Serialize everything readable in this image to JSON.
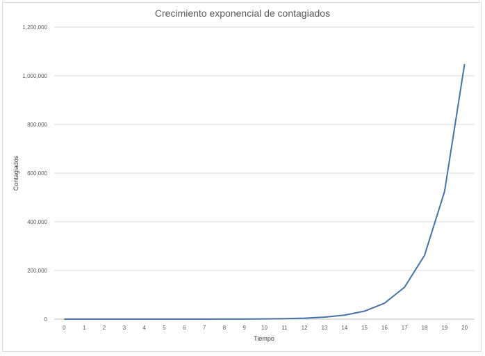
{
  "chart_data": {
    "type": "line",
    "title": "Crecimiento exponencial de contagiados",
    "xlabel": "Tiempo",
    "ylabel": "Contagiados",
    "x": [
      0,
      1,
      2,
      3,
      4,
      5,
      6,
      7,
      8,
      9,
      10,
      11,
      12,
      13,
      14,
      15,
      16,
      17,
      18,
      19,
      20
    ],
    "x_tick_labels": [
      "0",
      "1",
      "2",
      "3",
      "4",
      "5",
      "6",
      "7",
      "8",
      "9",
      "10",
      "11",
      "12",
      "13",
      "14",
      "15",
      "16",
      "17",
      "18",
      "19",
      "20"
    ],
    "series": [
      {
        "values": [
          1,
          2,
          4,
          8,
          16,
          32,
          64,
          128,
          256,
          512,
          1024,
          2048,
          4096,
          8192,
          16384,
          32768,
          65536,
          131072,
          262144,
          524288,
          1048576
        ]
      }
    ],
    "ylim": [
      0,
      1200000
    ],
    "y_ticks": [
      0,
      200000,
      400000,
      600000,
      800000,
      1000000,
      1200000
    ],
    "y_tick_labels": [
      "0",
      "200,000",
      "400,000",
      "600,000",
      "800,000",
      "1,000,000",
      "1,200,000"
    ],
    "grid": "horizontal",
    "legend": "none",
    "colors": {
      "line": "#4472a8",
      "grid": "#d9d9d9",
      "axis": "#bfbfbf",
      "text": "#595959"
    }
  }
}
